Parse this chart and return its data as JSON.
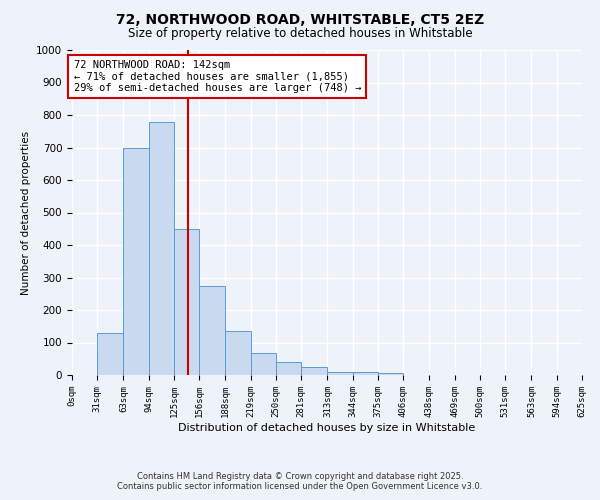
{
  "title": "72, NORTHWOOD ROAD, WHITSTABLE, CT5 2EZ",
  "subtitle": "Size of property relative to detached houses in Whitstable",
  "xlabel": "Distribution of detached houses by size in Whitstable",
  "ylabel": "Number of detached properties",
  "bar_left_edges": [
    0,
    31,
    63,
    94,
    125,
    156,
    188,
    219,
    250,
    281,
    313,
    344,
    375,
    406,
    438,
    469,
    500,
    531,
    563,
    594
  ],
  "bar_heights": [
    0,
    130,
    700,
    780,
    450,
    275,
    135,
    68,
    40,
    25,
    10,
    10,
    5,
    0,
    0,
    0,
    0,
    0,
    0,
    0
  ],
  "bin_width": 31,
  "bar_color": "#c8d9f0",
  "bar_edge_color": "#5a9bd5",
  "vline_x": 142,
  "vline_color": "#cc0000",
  "annotation_line1": "72 NORTHWOOD ROAD: 142sqm",
  "annotation_line2": "← 71% of detached houses are smaller (1,855)",
  "annotation_line3": "29% of semi-detached houses are larger (748) →",
  "ylim": [
    0,
    1000
  ],
  "xlim": [
    0,
    625
  ],
  "tick_labels": [
    "0sqm",
    "31sqm",
    "63sqm",
    "94sqm",
    "125sqm",
    "156sqm",
    "188sqm",
    "219sqm",
    "250sqm",
    "281sqm",
    "313sqm",
    "344sqm",
    "375sqm",
    "406sqm",
    "438sqm",
    "469sqm",
    "500sqm",
    "531sqm",
    "563sqm",
    "594sqm",
    "625sqm"
  ],
  "tick_positions": [
    0,
    31,
    63,
    94,
    125,
    156,
    188,
    219,
    250,
    281,
    313,
    344,
    375,
    406,
    438,
    469,
    500,
    531,
    563,
    594,
    625
  ],
  "ytick_labels": [
    "0",
    "100",
    "200",
    "300",
    "400",
    "500",
    "600",
    "700",
    "800",
    "900",
    "1000"
  ],
  "ytick_positions": [
    0,
    100,
    200,
    300,
    400,
    500,
    600,
    700,
    800,
    900,
    1000
  ],
  "footer_line1": "Contains HM Land Registry data © Crown copyright and database right 2025.",
  "footer_line2": "Contains public sector information licensed under the Open Government Licence v3.0.",
  "background_color": "#eef2f9",
  "grid_color": "#ffffff",
  "annotation_box_facecolor": "#ffffff",
  "annotation_box_edgecolor": "#cc0000"
}
